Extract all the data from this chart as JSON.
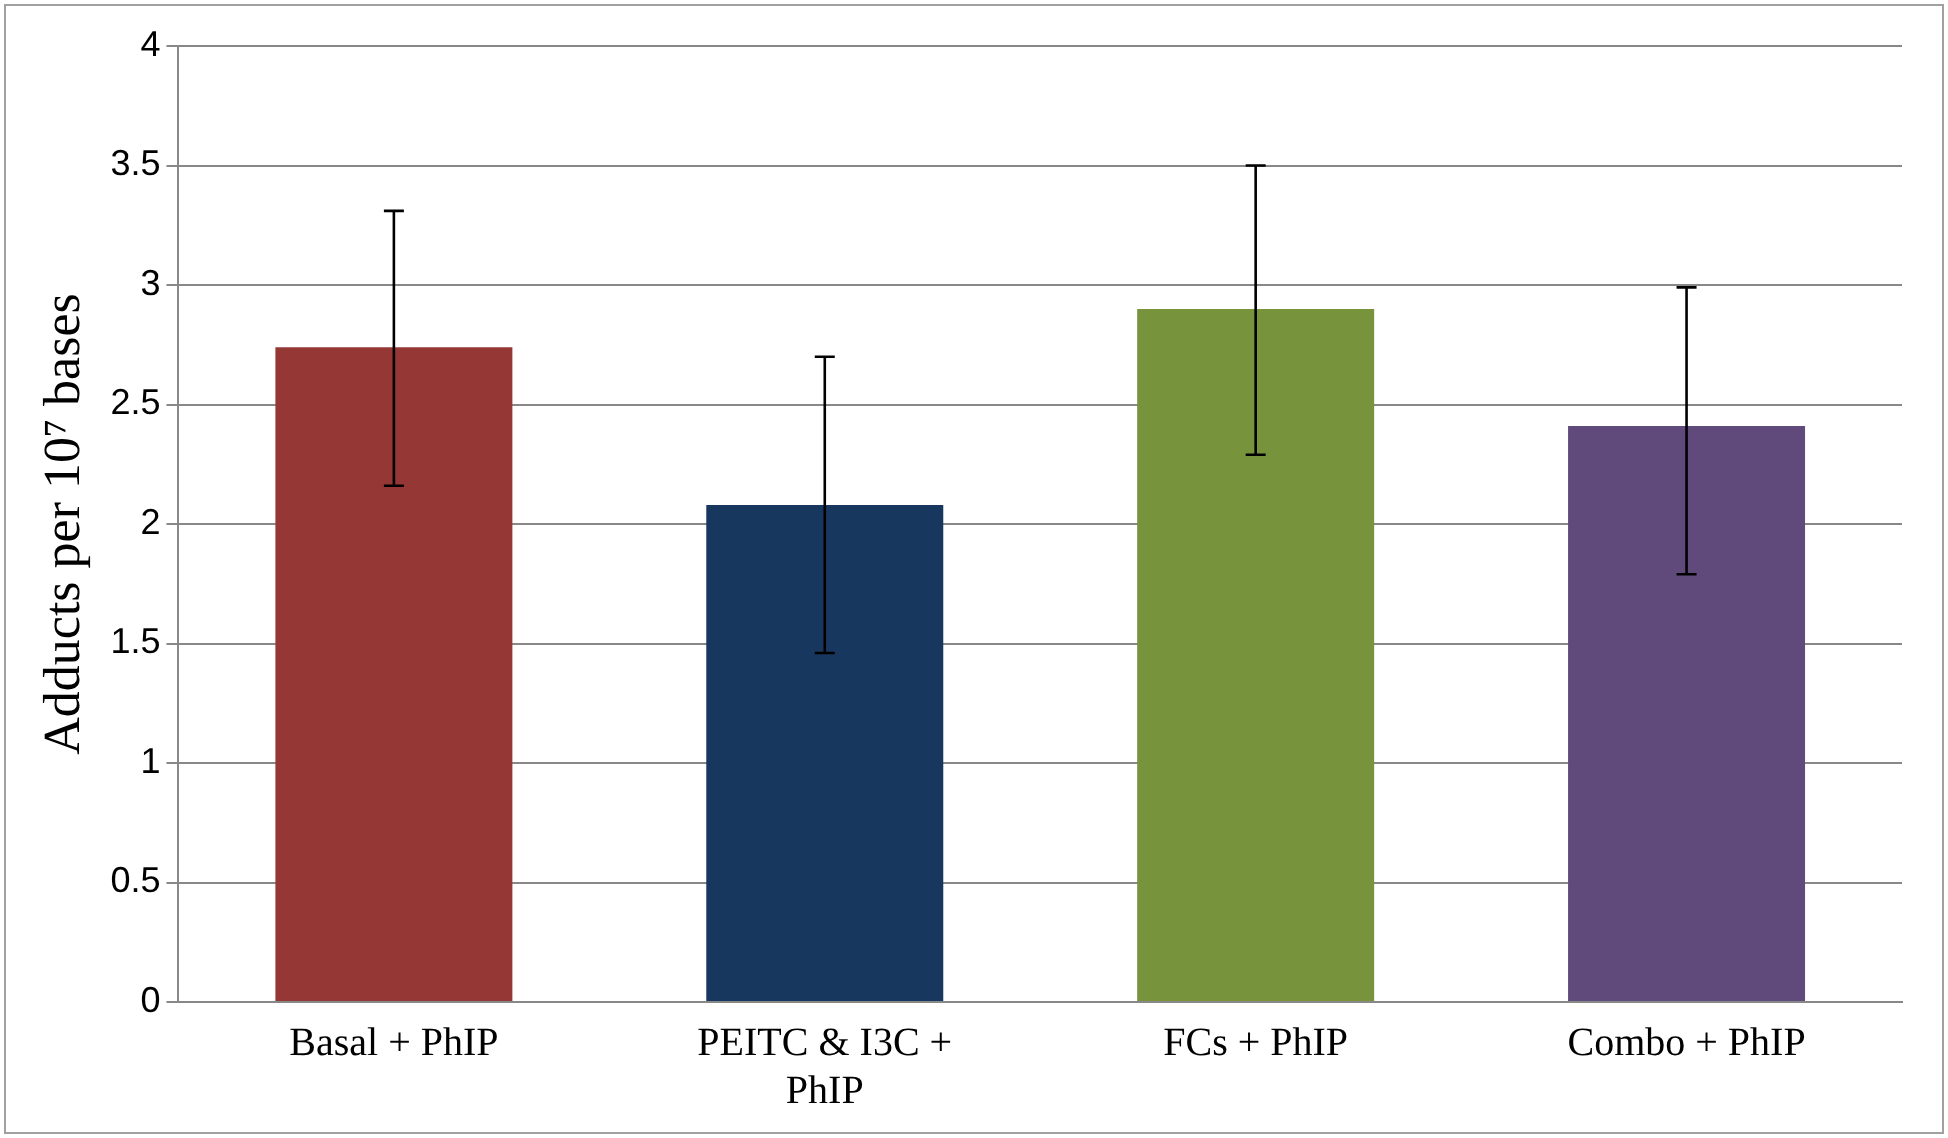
{
  "chart_data": {
    "type": "bar",
    "ylabel": "Adducts per 10⁷ bases",
    "categories": [
      "Basal + PhIP",
      "PEITC & I3C + PhIP",
      "FCs + PhIP",
      "Combo + PhIP"
    ],
    "values": [
      2.74,
      2.08,
      2.9,
      2.41
    ],
    "colors": [
      "#953735",
      "#17375e",
      "#77933c",
      "#604a7b"
    ],
    "errors": [
      [
        2.16,
        3.31
      ],
      [
        1.46,
        2.7
      ],
      [
        2.29,
        3.5
      ],
      [
        1.79,
        2.99
      ]
    ],
    "ylim": [
      0,
      4
    ],
    "yticks": [
      0,
      0.5,
      1,
      1.5,
      2,
      2.5,
      3,
      3.5,
      4
    ],
    "grid": "y"
  }
}
